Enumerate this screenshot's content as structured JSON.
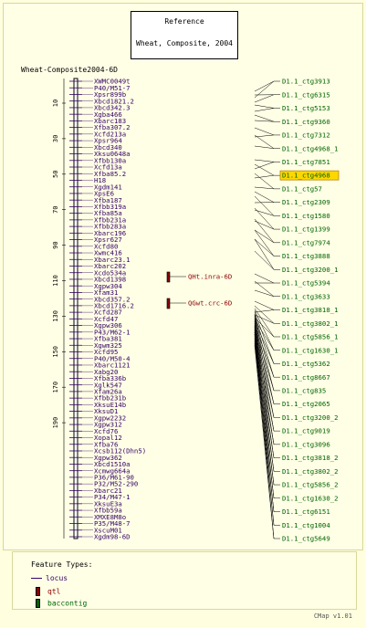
{
  "reference": {
    "heading": "Reference",
    "subtitle": "Wheat, Composite, 2004"
  },
  "map": {
    "title": "Wheat-Composite2004-6D",
    "scale_ticks": [
      "10",
      "30",
      "50",
      "70",
      "90",
      "110",
      "130",
      "150",
      "170",
      "190"
    ],
    "loci": [
      "XWMC0049t",
      "P40/M51-7",
      "Xpsr899b",
      "Xbcd1821.2",
      "Xbcd342.3",
      "Xgba466",
      "Xbarc183",
      "Xfba307.2",
      "Xcfd213a",
      "Xpsr964",
      "Xbcd340",
      "Xksu0648a",
      "Xfbb130a",
      "Xcfd13a",
      "Xfba85.2",
      "H18",
      "Xgdm141",
      "XpsE6",
      "Xfba187",
      "Xfbb319a",
      "Xfba85a",
      "Xfbb231a",
      "Xfbb283a",
      "Xbarc196",
      "Xpsr627",
      "Xcfd80",
      "Xwmc416",
      "Xbarc23.1",
      "Xbarc202",
      "Xcdo534a",
      "Xbcd1398",
      "Xgpw304",
      "Xfam31",
      "Xbcd357.2",
      "Xbcd1716.2",
      "Xcfd287",
      "Xcfd47",
      "Xgpw306",
      "P43/M62-1",
      "Xfba381",
      "Xgwm325",
      "Xcfd95",
      "P40/M50-4",
      "Xbarc1121",
      "Xabg20",
      "Xfba336b",
      "Xglk547",
      "Xfam26a",
      "Xfbb231b",
      "XksuE14b",
      "XksuD1",
      "Xgpw2232",
      "Xgpw312",
      "Xcfd76",
      "Xopal12",
      "Xfba76",
      "Xcsb112(Dhn5)",
      "Xgpw362",
      "Xbcd1510a",
      "Xcmwg664a",
      "P36/M61-90",
      "P32/M52-290",
      "Xbarc21",
      "P34/M47-1",
      "XksuE3a",
      "Xfbb59a",
      "XMXE8M8o",
      "P35/M48-7",
      "XscuM01",
      "Xgdm98-6D"
    ],
    "qtls": [
      "QHt.inra-6D",
      "QGwt.crc-6D"
    ],
    "contigs": [
      "D1.1_ctg3913",
      "D1.1_ctg6315",
      "D1.1_ctg5153",
      "D1.1_ctg9360",
      "D1.1_ctg7312",
      "D1.1_ctg4968_1",
      "D1.1_ctg7851",
      "D1.1_ctg4968",
      "D1.1_ctg57",
      "D1.1_ctg2309",
      "D1.1_ctg1580",
      "D1.1_ctg1399",
      "D1.1_ctg7974",
      "D1.1_ctg3888",
      "D1.1_ctg3200_1",
      "D1.1_ctg5394",
      "D1.1_ctg3633",
      "D1.1_ctg3818_1",
      "D1.1_ctg3802_1",
      "D1.1_ctg5856_1",
      "D1.1_ctg1630_1",
      "D1.1_ctg5362",
      "D1.1_ctg8667",
      "D1.1_ctg835",
      "D1.1_ctg2065",
      "D1.1_ctg3200_2",
      "D1.1_ctg9019",
      "D1.1_ctg3096",
      "D1.1_ctg3818_2",
      "D1.1_ctg3802_2",
      "D1.1_ctg5856_2",
      "D1.1_ctg1630_2",
      "D1.1_ctg6151",
      "D1.1_ctg1004",
      "D1.1_ctg5649"
    ],
    "highlighted_contig": "D1.1_ctg4968"
  },
  "legend": {
    "heading": "Feature Types:",
    "items": [
      "locus",
      "qtl",
      "baccontig"
    ]
  },
  "version": "CMap v1.01",
  "colors": {
    "locus": "#330066",
    "qtl": "#8b0000",
    "contig": "#006400",
    "highlight": "#ffd700"
  }
}
